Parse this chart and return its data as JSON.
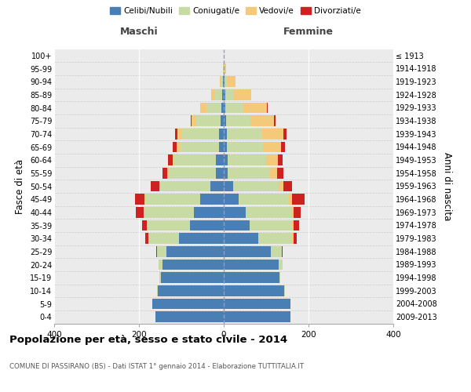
{
  "age_groups": [
    "0-4",
    "5-9",
    "10-14",
    "15-19",
    "20-24",
    "25-29",
    "30-34",
    "35-39",
    "40-44",
    "45-49",
    "50-54",
    "55-59",
    "60-64",
    "65-69",
    "70-74",
    "75-79",
    "80-84",
    "85-89",
    "90-94",
    "95-99",
    "100+"
  ],
  "birth_years": [
    "2009-2013",
    "2004-2008",
    "1999-2003",
    "1994-1998",
    "1989-1993",
    "1984-1988",
    "1979-1983",
    "1974-1978",
    "1969-1973",
    "1964-1968",
    "1959-1963",
    "1954-1958",
    "1949-1953",
    "1944-1948",
    "1939-1943",
    "1934-1938",
    "1929-1933",
    "1924-1928",
    "1919-1923",
    "1914-1918",
    "≤ 1913"
  ],
  "males": {
    "celibi": [
      162,
      168,
      155,
      148,
      145,
      135,
      105,
      80,
      70,
      55,
      32,
      18,
      18,
      12,
      12,
      8,
      5,
      3,
      1,
      0,
      0
    ],
    "coniugati": [
      0,
      0,
      2,
      3,
      8,
      22,
      72,
      100,
      118,
      130,
      118,
      112,
      98,
      92,
      88,
      58,
      35,
      18,
      5,
      1,
      0
    ],
    "vedovi": [
      0,
      0,
      0,
      0,
      0,
      0,
      1,
      1,
      1,
      2,
      2,
      3,
      5,
      8,
      10,
      10,
      15,
      8,
      3,
      0,
      0
    ],
    "divorziati": [
      0,
      0,
      0,
      0,
      0,
      2,
      8,
      12,
      18,
      22,
      20,
      12,
      10,
      8,
      5,
      2,
      0,
      0,
      0,
      0,
      0
    ]
  },
  "females": {
    "nubili": [
      158,
      158,
      142,
      132,
      130,
      112,
      82,
      62,
      52,
      35,
      22,
      10,
      10,
      8,
      8,
      5,
      4,
      3,
      1,
      0,
      0
    ],
    "coniugate": [
      0,
      0,
      2,
      2,
      8,
      25,
      80,
      100,
      108,
      118,
      108,
      100,
      90,
      85,
      82,
      58,
      42,
      20,
      8,
      2,
      0
    ],
    "vedove": [
      0,
      0,
      0,
      0,
      0,
      0,
      2,
      3,
      4,
      8,
      10,
      15,
      28,
      42,
      50,
      55,
      55,
      42,
      18,
      3,
      0
    ],
    "divorziate": [
      0,
      0,
      0,
      0,
      0,
      2,
      8,
      12,
      18,
      30,
      22,
      15,
      10,
      10,
      8,
      5,
      2,
      0,
      0,
      0,
      0
    ]
  },
  "colors": {
    "celibi_nubili": "#4a7fb5",
    "coniugati": "#c8dba5",
    "vedovi": "#f5c97a",
    "divorziati": "#cc2222"
  },
  "xlim": 400,
  "title": "Popolazione per età, sesso e stato civile - 2014",
  "subtitle": "COMUNE DI PASSIRANO (BS) - Dati ISTAT 1° gennaio 2014 - Elaborazione TUTTITALIA.IT",
  "ylabel_left": "Fasce di età",
  "ylabel_right": "Anni di nascita",
  "xlabel_maschi": "Maschi",
  "xlabel_femmine": "Femmine",
  "background_color": "#ffffff",
  "plot_bg": "#ebebeb",
  "legend_items": [
    "Celibi/Nubili",
    "Coniugati/e",
    "Vedovi/e",
    "Divorziati/e"
  ],
  "xticks": [
    -400,
    -200,
    0,
    200,
    400
  ],
  "xtick_labels": [
    "400",
    "200",
    "0",
    "200",
    "400"
  ]
}
